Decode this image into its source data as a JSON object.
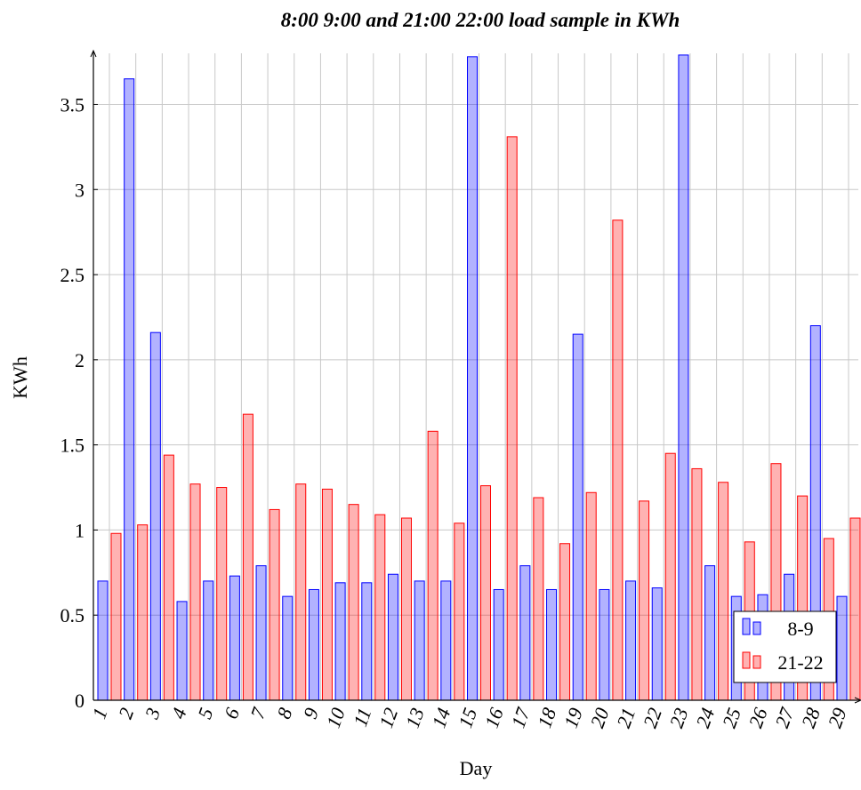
{
  "chart_data": {
    "type": "bar",
    "title": "8:00 9:00 and 21:00 22:00 load sample in KWh",
    "x_label": "Day",
    "y_label": "KWh",
    "categories": [
      "1",
      "2",
      "3",
      "4",
      "5",
      "6",
      "7",
      "8",
      "9",
      "10",
      "11",
      "12",
      "13",
      "14",
      "15",
      "16",
      "17",
      "18",
      "19",
      "20",
      "21",
      "22",
      "23",
      "24",
      "25",
      "26",
      "27",
      "28",
      "29"
    ],
    "series": [
      {
        "name": "8-9",
        "color": "#0000ff",
        "values": [
          0.7,
          3.65,
          2.16,
          0.58,
          0.7,
          0.73,
          0.79,
          0.61,
          0.65,
          0.69,
          0.69,
          0.74,
          0.7,
          0.7,
          3.78,
          0.65,
          0.79,
          0.65,
          2.15,
          0.65,
          0.7,
          0.66,
          3.79,
          0.79,
          0.61,
          0.62,
          0.74,
          2.2,
          0.61
        ]
      },
      {
        "name": "21-22",
        "color": "#ff0000",
        "values": [
          0.98,
          1.03,
          1.44,
          1.27,
          1.25,
          1.68,
          1.12,
          1.27,
          1.24,
          1.15,
          1.09,
          1.07,
          1.58,
          1.04,
          1.26,
          3.31,
          1.19,
          0.92,
          1.22,
          2.82,
          1.17,
          1.45,
          1.36,
          1.28,
          0.93,
          1.39,
          1.2,
          0.95,
          1.07
        ]
      }
    ],
    "ylim": [
      0,
      3.8
    ],
    "yticks": [
      0,
      0.5,
      1,
      1.5,
      2,
      2.5,
      3,
      3.5
    ],
    "grid": true,
    "legend": "lower right"
  }
}
